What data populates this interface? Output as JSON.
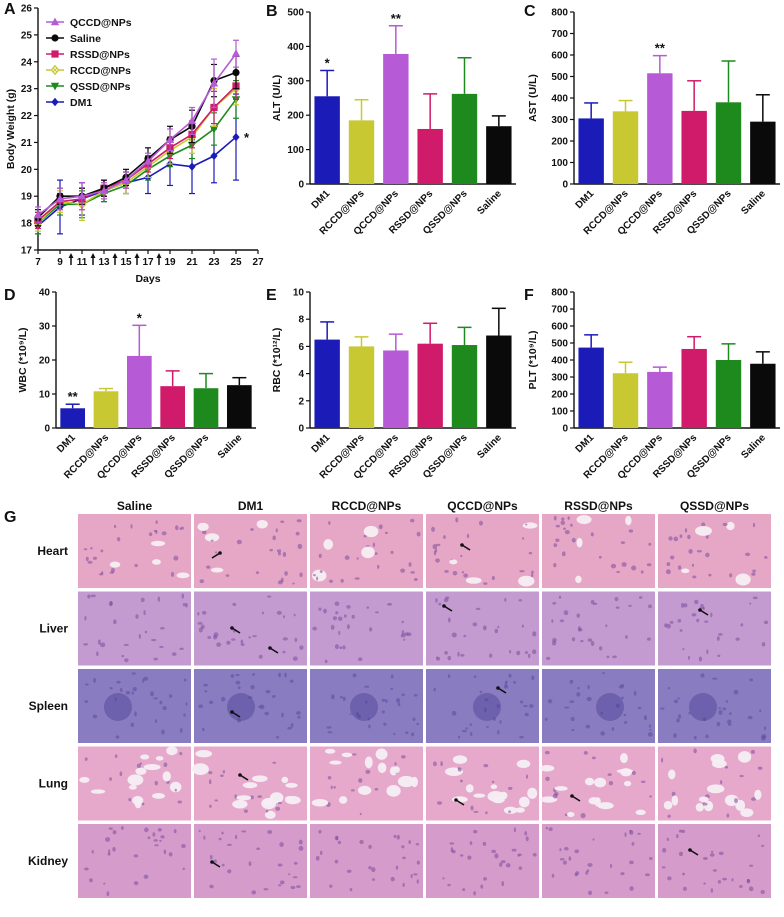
{
  "panels": {
    "a": "A",
    "b": "B",
    "c": "C",
    "d": "D",
    "e": "E",
    "f": "F",
    "g": "G"
  },
  "colors": {
    "DM1": "#1b1bb8",
    "RCCD@NPs": "#c8c832",
    "QCCD@NPs": "#b65ad6",
    "RSSD@NPs": "#d01a6a",
    "QSSD@NPs": "#1e8a1e",
    "Saline": "#0a0a0a"
  },
  "chart_data": [
    {
      "id": "A",
      "type": "line",
      "xlabel": "Days",
      "ylabel": "Body Weight (g)",
      "xlim": [
        7,
        27
      ],
      "ylim": [
        17,
        26
      ],
      "xticks": [
        "7",
        "9",
        "11",
        "13",
        "15",
        "17",
        "19",
        "21",
        "23",
        "25",
        "27"
      ],
      "yticks": [
        "17",
        "18",
        "19",
        "20",
        "21",
        "22",
        "23",
        "24",
        "25",
        "26"
      ],
      "dosing_days": [
        10,
        12,
        14,
        16,
        18
      ],
      "x": [
        7,
        9,
        11,
        13,
        15,
        17,
        19,
        21,
        23,
        25
      ],
      "annotation": {
        "x": 25,
        "y": 21.2,
        "text": "*"
      },
      "series": [
        {
          "name": "QCCD@NPs",
          "marker": "triangle-up",
          "values": [
            18.3,
            18.9,
            19.0,
            19.2,
            19.6,
            20.3,
            21.1,
            21.8,
            23.2,
            24.3
          ],
          "errors": [
            0.3,
            0.4,
            0.5,
            0.3,
            0.3,
            0.3,
            0.4,
            0.5,
            0.9,
            0.5
          ]
        },
        {
          "name": "Saline",
          "marker": "circle",
          "values": [
            18.2,
            19.0,
            19.0,
            19.3,
            19.7,
            20.4,
            21.1,
            21.6,
            23.3,
            23.6
          ],
          "errors": [
            0.3,
            0.3,
            0.3,
            0.3,
            0.3,
            0.4,
            0.5,
            0.6,
            0.6,
            0.6
          ]
        },
        {
          "name": "RSSD@NPs",
          "marker": "square",
          "values": [
            18.1,
            18.8,
            18.9,
            19.3,
            19.6,
            20.2,
            20.8,
            21.3,
            22.3,
            23.1
          ],
          "errors": [
            0.3,
            0.3,
            0.4,
            0.3,
            0.3,
            0.3,
            0.4,
            0.5,
            0.6,
            0.5
          ]
        },
        {
          "name": "RCCD@NPs",
          "marker": "diamond-x",
          "values": [
            18.0,
            18.8,
            18.7,
            19.2,
            19.5,
            20.1,
            20.7,
            21.2,
            22.3,
            23.0
          ],
          "errors": [
            0.3,
            0.4,
            0.6,
            0.3,
            0.4,
            0.4,
            0.5,
            0.6,
            0.7,
            0.6
          ]
        },
        {
          "name": "QSSD@NPs",
          "marker": "triangle-down",
          "values": [
            18.0,
            18.7,
            18.7,
            19.1,
            19.4,
            20.0,
            20.5,
            20.9,
            21.5,
            22.6
          ],
          "errors": [
            0.4,
            0.4,
            0.5,
            0.3,
            0.3,
            0.4,
            0.4,
            0.5,
            0.6,
            0.7
          ]
        },
        {
          "name": "DM1",
          "marker": "diamond",
          "values": [
            17.9,
            18.6,
            18.9,
            19.2,
            19.5,
            19.7,
            20.2,
            20.1,
            20.5,
            21.2
          ],
          "errors": [
            0.3,
            1.0,
            0.6,
            0.4,
            0.4,
            0.6,
            0.8,
            1.0,
            1.0,
            1.6
          ]
        }
      ]
    },
    {
      "id": "B",
      "type": "bar",
      "ylabel": "ALT (U/L)",
      "ylim": [
        0,
        500
      ],
      "yticks": [
        "0",
        "100",
        "200",
        "300",
        "400",
        "500"
      ],
      "categories": [
        "DM1",
        "RCCD@NPs",
        "QCCD@NPs",
        "RSSD@NPs",
        "QSSD@NPs",
        "Saline"
      ],
      "values": [
        255,
        185,
        378,
        160,
        262,
        168
      ],
      "errors": [
        75,
        60,
        82,
        102,
        105,
        30
      ],
      "stars": [
        "*",
        "",
        "**",
        "",
        "",
        ""
      ]
    },
    {
      "id": "C",
      "type": "bar",
      "ylabel": "AST (U/L)",
      "ylim": [
        0,
        800
      ],
      "yticks": [
        "0",
        "100",
        "200",
        "300",
        "400",
        "500",
        "600",
        "700",
        "800"
      ],
      "categories": [
        "DM1",
        "RCCD@NPs",
        "QCCD@NPs",
        "RSSD@NPs",
        "QSSD@NPs",
        "Saline"
      ],
      "values": [
        305,
        338,
        515,
        340,
        380,
        290
      ],
      "errors": [
        72,
        50,
        82,
        140,
        192,
        125
      ],
      "stars": [
        "",
        "",
        "**",
        "",
        "",
        ""
      ]
    },
    {
      "id": "D",
      "type": "bar",
      "ylabel": "WBC (*10⁹/L)",
      "ylim": [
        0,
        40
      ],
      "yticks": [
        "0",
        "10",
        "20",
        "30",
        "40"
      ],
      "categories": [
        "DM1",
        "RCCD@NPs",
        "QCCD@NPs",
        "RSSD@NPs",
        "QSSD@NPs",
        "Saline"
      ],
      "values": [
        5.8,
        10.8,
        21.2,
        12.3,
        11.7,
        12.6
      ],
      "errors": [
        1.2,
        0.8,
        9.0,
        4.5,
        4.3,
        2.2
      ],
      "stars": [
        "**",
        "",
        "*",
        "",
        "",
        ""
      ]
    },
    {
      "id": "E",
      "type": "bar",
      "ylabel": "RBC (*10¹²/L)",
      "ylim": [
        0,
        10
      ],
      "yticks": [
        "0",
        "2",
        "4",
        "6",
        "8",
        "10"
      ],
      "categories": [
        "DM1",
        "RCCD@NPs",
        "QCCD@NPs",
        "RSSD@NPs",
        "QSSD@NPs",
        "Saline"
      ],
      "values": [
        6.5,
        6.0,
        5.7,
        6.2,
        6.1,
        6.8
      ],
      "errors": [
        1.3,
        0.7,
        1.2,
        1.5,
        1.3,
        2.0
      ],
      "stars": [
        "",
        "",
        "",
        "",
        "",
        ""
      ]
    },
    {
      "id": "F",
      "type": "bar",
      "ylabel": "PLT (*10⁹/L)",
      "ylim": [
        0,
        800
      ],
      "yticks": [
        "0",
        "100",
        "200",
        "300",
        "400",
        "500",
        "600",
        "700",
        "800"
      ],
      "categories": [
        "DM1",
        "RCCD@NPs",
        "QCCD@NPs",
        "RSSD@NPs",
        "QSSD@NPs",
        "Saline"
      ],
      "values": [
        473,
        322,
        330,
        465,
        400,
        378
      ],
      "errors": [
        75,
        65,
        28,
        72,
        95,
        70
      ],
      "stars": [
        "",
        "",
        "",
        "",
        "",
        ""
      ]
    }
  ],
  "histology": {
    "columns": [
      "Saline",
      "DM1",
      "RCCD@NPs",
      "QCCD@NPs",
      "RSSD@NPs",
      "QSSD@NPs"
    ],
    "rows": [
      "Heart",
      "Liver",
      "Spleen",
      "Lung",
      "Kidney"
    ],
    "tissue_colors": {
      "Heart": "#e6a6c6",
      "Liver": "#c49bd0",
      "Spleen": "#8a7cc0",
      "Lung": "#e7a9cb",
      "Kidney": "#d59ccb"
    }
  }
}
